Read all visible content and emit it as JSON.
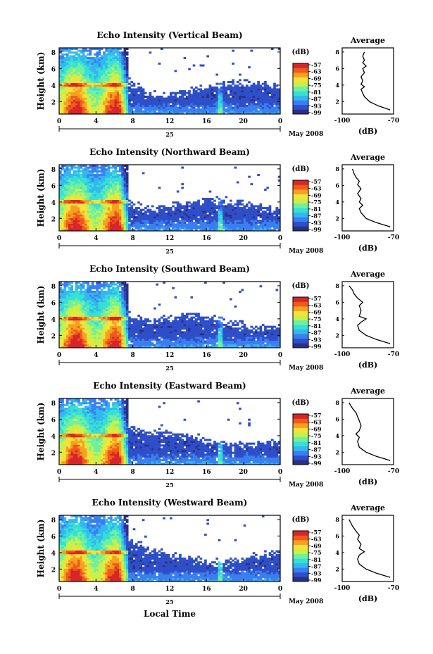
{
  "figure": {
    "bottom_label": "Local Time",
    "date_label": "May 2008",
    "day_label": "25",
    "cbar_unit": "(dB)",
    "avg_title": "Average",
    "avg_unit": "(dB)"
  },
  "colorscale": {
    "colors": [
      "#2b2f86",
      "#2f4fc8",
      "#3a7ff0",
      "#33b7f0",
      "#37e0d5",
      "#6ff0a0",
      "#c8f04a",
      "#f5e23a",
      "#f8a020",
      "#f05a1a",
      "#d7262a"
    ],
    "ticks": [
      "-57",
      "-63",
      "-69",
      "-75",
      "-81",
      "-87",
      "-93",
      "-99"
    ]
  },
  "chart_data": [
    {
      "type": "heatmap",
      "title": "Echo Intensity (Vertical Beam)",
      "xlabel": "",
      "ylabel": "Height (km)",
      "x_ticks": [
        "0",
        "4",
        "8",
        "12",
        "16",
        "20",
        "0"
      ],
      "y_ticks": [
        "2",
        "4",
        "6",
        "8"
      ],
      "xlim": [
        0,
        24
      ],
      "ylim": [
        0.5,
        8.5
      ],
      "colorbar": {
        "label": "(dB)",
        "ticks": [
          "-57",
          "-63",
          "-69",
          "-75",
          "-81",
          "-87",
          "-93",
          "-99"
        ]
      },
      "profile": {
        "title": "Average",
        "xlabel": "(dB)",
        "x_ticks": [
          "-100",
          "-70"
        ],
        "y_ticks": [
          "2",
          "4",
          "6",
          "8"
        ],
        "xlim": [
          -100,
          -70
        ],
        "ylim": [
          0.5,
          8.5
        ],
        "points": [
          [
            -72,
            1.0
          ],
          [
            -79,
            1.5
          ],
          [
            -84,
            2.0
          ],
          [
            -87,
            2.6
          ],
          [
            -88,
            3.0
          ],
          [
            -89,
            3.5
          ],
          [
            -87,
            3.8
          ],
          [
            -89,
            4.1
          ],
          [
            -88,
            4.5
          ],
          [
            -89,
            5.0
          ],
          [
            -87,
            5.5
          ],
          [
            -88,
            6.0
          ],
          [
            -86,
            6.3
          ],
          [
            -88,
            6.7
          ],
          [
            -87,
            7.0
          ],
          [
            -88,
            7.5
          ],
          [
            -87,
            8.0
          ]
        ]
      }
    },
    {
      "type": "heatmap",
      "title": "Echo Intensity (Northward Beam)",
      "xlabel": "",
      "ylabel": "Height (km)",
      "x_ticks": [
        "0",
        "4",
        "8",
        "12",
        "16",
        "20",
        "0"
      ],
      "y_ticks": [
        "2",
        "4",
        "6",
        "8"
      ],
      "xlim": [
        0,
        24
      ],
      "ylim": [
        0.5,
        8.5
      ],
      "colorbar": {
        "label": "(dB)",
        "ticks": [
          "-57",
          "-63",
          "-69",
          "-75",
          "-81",
          "-87",
          "-93",
          "-99"
        ]
      },
      "profile": {
        "title": "Average",
        "xlabel": "(dB)",
        "x_ticks": [
          "-100",
          "-70"
        ],
        "y_ticks": [
          "2",
          "4",
          "6",
          "8"
        ],
        "xlim": [
          -100,
          -70
        ],
        "ylim": [
          0.5,
          8.5
        ],
        "points": [
          [
            -72,
            1.0
          ],
          [
            -80,
            1.5
          ],
          [
            -86,
            2.0
          ],
          [
            -89,
            2.7
          ],
          [
            -90,
            3.2
          ],
          [
            -88,
            3.6
          ],
          [
            -90,
            4.0
          ],
          [
            -89,
            4.4
          ],
          [
            -91,
            5.0
          ],
          [
            -89,
            5.6
          ],
          [
            -91,
            6.1
          ],
          [
            -90,
            6.5
          ],
          [
            -92,
            7.0
          ],
          [
            -93,
            7.4
          ],
          [
            -94,
            8.0
          ]
        ]
      }
    },
    {
      "type": "heatmap",
      "title": "Echo Intensity (Southward Beam)",
      "xlabel": "",
      "ylabel": "Height (km)",
      "x_ticks": [
        "0",
        "4",
        "8",
        "12",
        "16",
        "20",
        "0"
      ],
      "y_ticks": [
        "2",
        "4",
        "6",
        "8"
      ],
      "xlim": [
        0,
        24
      ],
      "ylim": [
        0.5,
        8.5
      ],
      "colorbar": {
        "label": "(dB)",
        "ticks": [
          "-57",
          "-63",
          "-69",
          "-75",
          "-81",
          "-87",
          "-93",
          "-99"
        ]
      },
      "profile": {
        "title": "Average",
        "xlabel": "(dB)",
        "x_ticks": [
          "-100",
          "-70"
        ],
        "y_ticks": [
          "2",
          "4",
          "6",
          "8"
        ],
        "xlim": [
          -100,
          -70
        ],
        "ylim": [
          0.5,
          8.5
        ],
        "points": [
          [
            -72,
            1.0
          ],
          [
            -80,
            1.5
          ],
          [
            -86,
            2.0
          ],
          [
            -90,
            2.6
          ],
          [
            -91,
            3.2
          ],
          [
            -89,
            3.6
          ],
          [
            -86,
            4.0
          ],
          [
            -90,
            4.3
          ],
          [
            -89,
            5.0
          ],
          [
            -90,
            5.6
          ],
          [
            -88,
            6.0
          ],
          [
            -91,
            6.5
          ],
          [
            -93,
            7.0
          ],
          [
            -94,
            7.5
          ],
          [
            -96,
            8.0
          ]
        ]
      }
    },
    {
      "type": "heatmap",
      "title": "Echo Intensity (Eastward Beam)",
      "xlabel": "",
      "ylabel": "Height (km)",
      "x_ticks": [
        "0",
        "4",
        "8",
        "12",
        "16",
        "20",
        "0"
      ],
      "y_ticks": [
        "2",
        "4",
        "6",
        "8"
      ],
      "xlim": [
        0,
        24
      ],
      "ylim": [
        0.5,
        8.5
      ],
      "colorbar": {
        "label": "(dB)",
        "ticks": [
          "-57",
          "-63",
          "-69",
          "-75",
          "-81",
          "-87",
          "-93",
          "-99"
        ]
      },
      "profile": {
        "title": "Average",
        "xlabel": "(dB)",
        "x_ticks": [
          "-100",
          "-70"
        ],
        "y_ticks": [
          "2",
          "4",
          "6",
          "8"
        ],
        "xlim": [
          -100,
          -70
        ],
        "ylim": [
          0.5,
          8.5
        ],
        "points": [
          [
            -72,
            1.0
          ],
          [
            -80,
            1.5
          ],
          [
            -86,
            2.0
          ],
          [
            -90,
            2.6
          ],
          [
            -91,
            3.3
          ],
          [
            -90,
            3.8
          ],
          [
            -92,
            4.2
          ],
          [
            -90,
            4.6
          ],
          [
            -89,
            5.2
          ],
          [
            -90,
            5.8
          ],
          [
            -91,
            6.3
          ],
          [
            -92,
            6.8
          ],
          [
            -94,
            7.3
          ],
          [
            -96,
            8.0
          ]
        ]
      }
    },
    {
      "type": "heatmap",
      "title": "Echo Intensity (Westward Beam)",
      "xlabel": "Local Time",
      "ylabel": "Height (km)",
      "x_ticks": [
        "0",
        "4",
        "8",
        "12",
        "16",
        "20",
        "0"
      ],
      "y_ticks": [
        "2",
        "4",
        "6",
        "8"
      ],
      "xlim": [
        0,
        24
      ],
      "ylim": [
        0.5,
        8.5
      ],
      "colorbar": {
        "label": "(dB)",
        "ticks": [
          "-57",
          "-63",
          "-69",
          "-75",
          "-81",
          "-87",
          "-93",
          "-99"
        ]
      },
      "profile": {
        "title": "Average",
        "xlabel": "(dB)",
        "x_ticks": [
          "-100",
          "-70"
        ],
        "y_ticks": [
          "2",
          "4",
          "6",
          "8"
        ],
        "xlim": [
          -100,
          -70
        ],
        "ylim": [
          0.5,
          8.5
        ],
        "points": [
          [
            -72,
            1.0
          ],
          [
            -80,
            1.5
          ],
          [
            -86,
            2.0
          ],
          [
            -90,
            2.6
          ],
          [
            -91,
            3.2
          ],
          [
            -90,
            3.7
          ],
          [
            -87,
            4.1
          ],
          [
            -90,
            4.5
          ],
          [
            -89,
            5.0
          ],
          [
            -91,
            5.6
          ],
          [
            -90,
            6.1
          ],
          [
            -92,
            6.6
          ],
          [
            -94,
            7.2
          ],
          [
            -96,
            8.0
          ]
        ]
      }
    }
  ]
}
